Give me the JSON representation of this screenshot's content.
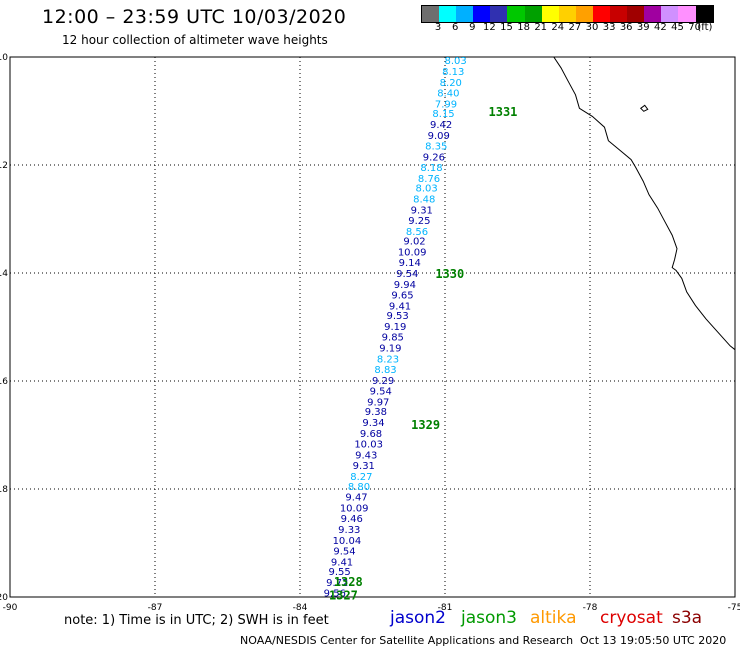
{
  "title": "12:00 – 23:59 UTC 10/03/2020",
  "subtitle": "12 hour collection of altimeter wave heights",
  "colorbar": {
    "unit": "(ft)",
    "colors": [
      "#6e6e6e",
      "#00ffff",
      "#00b0ff",
      "#0000ff",
      "#3030b0",
      "#00c800",
      "#00a000",
      "#ffff00",
      "#ffd000",
      "#ffa000",
      "#ff0000",
      "#c80000",
      "#a00000",
      "#a000a0",
      "#d090ff",
      "#ff90ff",
      "#000000"
    ],
    "tick_labels": [
      "3",
      "6",
      "9",
      "12",
      "15",
      "18",
      "21",
      "24",
      "27",
      "30",
      "33",
      "36",
      "39",
      "42",
      "45",
      "70"
    ]
  },
  "map": {
    "lon_range": [
      -90,
      -75
    ],
    "lat_range": [
      -20,
      -10
    ],
    "x_tick_labels": [
      "-90",
      "-87",
      "-84",
      "-81",
      "-78",
      "-75"
    ],
    "y_tick_labels": [
      "-10",
      "-12",
      "-14",
      "-16",
      "-18",
      "-20"
    ],
    "grid": "dotted",
    "coastline": "South America (Peru)"
  },
  "passes": [
    {
      "label": "1331",
      "lon": -80.1,
      "lat": -11.0
    },
    {
      "label": "1330",
      "lon": -81.2,
      "lat": -14.0
    },
    {
      "label": "1329",
      "lon": -81.7,
      "lat": -16.8
    },
    {
      "label": "1328",
      "lon": -83.3,
      "lat": -19.7
    },
    {
      "label": "1327",
      "lon": -83.4,
      "lat": -19.95
    }
  ],
  "track": [
    {
      "v": "8.03",
      "c": "cyan",
      "lon": -80.78,
      "lat": -10.06
    },
    {
      "v": "8.13",
      "c": "cyan",
      "lon": -80.83,
      "lat": -10.26
    },
    {
      "v": "8.20",
      "c": "cyan",
      "lon": -80.88,
      "lat": -10.46
    },
    {
      "v": "8.40",
      "c": "cyan",
      "lon": -80.93,
      "lat": -10.66
    },
    {
      "v": "7.99",
      "c": "cyan",
      "lon": -80.98,
      "lat": -10.86
    },
    {
      "v": "8.15",
      "c": "cyan",
      "lon": -81.03,
      "lat": -11.04
    },
    {
      "v": "9.42",
      "c": "blue",
      "lon": -81.08,
      "lat": -11.24
    },
    {
      "v": "9.09",
      "c": "blue",
      "lon": -81.13,
      "lat": -11.44
    },
    {
      "v": "8.35",
      "c": "cyan",
      "lon": -81.18,
      "lat": -11.64
    },
    {
      "v": "9.26",
      "c": "blue",
      "lon": -81.23,
      "lat": -11.84
    },
    {
      "v": "8.18",
      "c": "cyan",
      "lon": -81.28,
      "lat": -12.04
    },
    {
      "v": "8.76",
      "c": "cyan",
      "lon": -81.33,
      "lat": -12.24
    },
    {
      "v": "8.03",
      "c": "cyan",
      "lon": -81.38,
      "lat": -12.42
    },
    {
      "v": "8.48",
      "c": "cyan",
      "lon": -81.43,
      "lat": -12.62
    },
    {
      "v": "9.31",
      "c": "blue",
      "lon": -81.48,
      "lat": -12.82
    },
    {
      "v": "9.25",
      "c": "blue",
      "lon": -81.53,
      "lat": -13.02
    },
    {
      "v": "8.56",
      "c": "cyan",
      "lon": -81.58,
      "lat": -13.22
    },
    {
      "v": "9.02",
      "c": "blue",
      "lon": -81.63,
      "lat": -13.4
    },
    {
      "v": "10.09",
      "c": "blue",
      "lon": -81.68,
      "lat": -13.6
    },
    {
      "v": "9.14",
      "c": "blue",
      "lon": -81.73,
      "lat": -13.8
    },
    {
      "v": "9.54",
      "c": "blue",
      "lon": -81.78,
      "lat": -14.0
    },
    {
      "v": "9.94",
      "c": "blue",
      "lon": -81.83,
      "lat": -14.2
    },
    {
      "v": "9.65",
      "c": "blue",
      "lon": -81.88,
      "lat": -14.4
    },
    {
      "v": "9.41",
      "c": "blue",
      "lon": -81.93,
      "lat": -14.6
    },
    {
      "v": "9.53",
      "c": "blue",
      "lon": -81.98,
      "lat": -14.78
    },
    {
      "v": "9.19",
      "c": "blue",
      "lon": -82.03,
      "lat": -14.98
    },
    {
      "v": "9.85",
      "c": "blue",
      "lon": -82.08,
      "lat": -15.18
    },
    {
      "v": "9.19",
      "c": "blue",
      "lon": -82.13,
      "lat": -15.38
    },
    {
      "v": "8.23",
      "c": "cyan",
      "lon": -82.18,
      "lat": -15.58
    },
    {
      "v": "8.83",
      "c": "cyan",
      "lon": -82.23,
      "lat": -15.78
    },
    {
      "v": "9.29",
      "c": "blue",
      "lon": -82.28,
      "lat": -15.98
    },
    {
      "v": "9.54",
      "c": "blue",
      "lon": -82.33,
      "lat": -16.18
    },
    {
      "v": "9.97",
      "c": "blue",
      "lon": -82.38,
      "lat": -16.38
    },
    {
      "v": "9.38",
      "c": "blue",
      "lon": -82.43,
      "lat": -16.56
    },
    {
      "v": "9.34",
      "c": "blue",
      "lon": -82.48,
      "lat": -16.76
    },
    {
      "v": "9.68",
      "c": "blue",
      "lon": -82.53,
      "lat": -16.96
    },
    {
      "v": "10.03",
      "c": "blue",
      "lon": -82.58,
      "lat": -17.16
    },
    {
      "v": "9.43",
      "c": "blue",
      "lon": -82.63,
      "lat": -17.36
    },
    {
      "v": "9.31",
      "c": "blue",
      "lon": -82.68,
      "lat": -17.56
    },
    {
      "v": "8.27",
      "c": "cyan",
      "lon": -82.73,
      "lat": -17.76
    },
    {
      "v": "8.80",
      "c": "cyan",
      "lon": -82.78,
      "lat": -17.94
    },
    {
      "v": "9.47",
      "c": "blue",
      "lon": -82.83,
      "lat": -18.14
    },
    {
      "v": "10.09",
      "c": "blue",
      "lon": -82.88,
      "lat": -18.34
    },
    {
      "v": "9.46",
      "c": "blue",
      "lon": -82.93,
      "lat": -18.54
    },
    {
      "v": "9.33",
      "c": "blue",
      "lon": -82.98,
      "lat": -18.74
    },
    {
      "v": "10.04",
      "c": "blue",
      "lon": -83.03,
      "lat": -18.94
    },
    {
      "v": "9.54",
      "c": "blue",
      "lon": -83.08,
      "lat": -19.14
    },
    {
      "v": "9.41",
      "c": "blue",
      "lon": -83.13,
      "lat": -19.34
    },
    {
      "v": "9.55",
      "c": "blue",
      "lon": -83.18,
      "lat": -19.52
    },
    {
      "v": "9.72",
      "c": "blue",
      "lon": -83.23,
      "lat": -19.72
    },
    {
      "v": "9.56",
      "c": "blue",
      "lon": -83.28,
      "lat": -19.92
    }
  ],
  "footer": {
    "note": "note: 1) Time is in UTC; 2) SWH is in feet",
    "sats": [
      {
        "name": "jason2",
        "color": "#0000cc"
      },
      {
        "name": "jason3",
        "color": "#009900"
      },
      {
        "name": "altika",
        "color": "#ff9900"
      },
      {
        "name": "cryosat",
        "color": "#dd0000"
      },
      {
        "name": "s3a",
        "color": "#8b0000"
      }
    ],
    "credit": "NOAA/NESDIS Center for Satellite Applications and Research",
    "generated": "Oct 13 19:05:50 UTC 2020"
  }
}
